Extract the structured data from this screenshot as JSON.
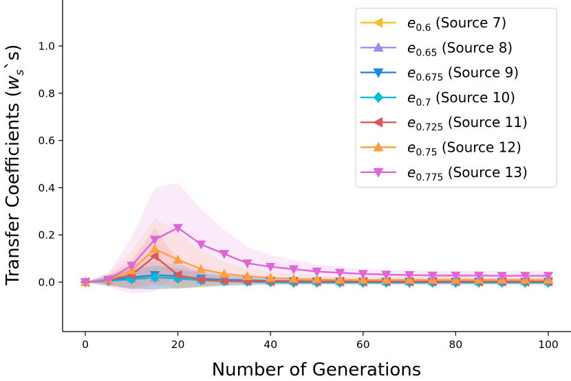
{
  "chart_data": {
    "type": "line",
    "xlabel": "Number of Generations",
    "ylabel_main": "Transfer Coefficients (",
    "ylabel_var": "w",
    "ylabel_sub": "s",
    "ylabel_tail": "`s)",
    "xlim": [
      -5,
      103
    ],
    "ylim": [
      -0.21,
      1.2
    ],
    "xticks": [
      0,
      20,
      40,
      60,
      80,
      100
    ],
    "yticks": [
      0.0,
      0.2,
      0.4,
      0.6,
      0.8,
      1.0
    ],
    "x": [
      0,
      5,
      10,
      15,
      20,
      25,
      30,
      35,
      40,
      45,
      50,
      55,
      60,
      65,
      70,
      75,
      80,
      85,
      90,
      95,
      100
    ],
    "legend_position": "top-right",
    "series": [
      {
        "key": "s7",
        "sym": "e",
        "sub": "0.6",
        "label": " (Source 7)",
        "color": "#fbc02d",
        "marker": "triangle-left",
        "values": [
          0,
          0.005,
          0.012,
          0.018,
          0.015,
          0.01,
          0.008,
          0.006,
          0.005,
          0.004,
          0.004,
          0.003,
          0.003,
          0.003,
          0.003,
          0.003,
          0.003,
          0.003,
          0.003,
          0.003,
          0.003
        ],
        "band": [
          0,
          0.02,
          0.04,
          0.05,
          0.045,
          0.03,
          0.025,
          0.02,
          0.015,
          0.012,
          0.01,
          0.01,
          0.01,
          0.01,
          0.01,
          0.01,
          0.01,
          0.01,
          0.01,
          0.01,
          0.01
        ]
      },
      {
        "key": "s8",
        "sym": "e",
        "sub": "0.65",
        "label": " (Source 8)",
        "color": "#9e8cf0",
        "marker": "triangle-up",
        "values": [
          0,
          0.01,
          0.015,
          0.02,
          0.018,
          0.012,
          0.009,
          0.007,
          0.005,
          0.004,
          0.004,
          0.003,
          0.003,
          0.003,
          0.003,
          0.003,
          0.003,
          0.003,
          0.003,
          0.003,
          0.003
        ],
        "band": [
          0,
          0.02,
          0.04,
          0.05,
          0.045,
          0.03,
          0.025,
          0.02,
          0.015,
          0.012,
          0.01,
          0.01,
          0.01,
          0.01,
          0.01,
          0.01,
          0.01,
          0.01,
          0.01,
          0.01,
          0.01
        ]
      },
      {
        "key": "s9",
        "sym": "e",
        "sub": "0.675",
        "label": " (Source 9)",
        "color": "#1e88e5",
        "marker": "triangle-down",
        "values": [
          0,
          0.008,
          0.02,
          0.03,
          0.025,
          0.015,
          0.01,
          0.008,
          0.005,
          0.004,
          0.003,
          0.003,
          0.002,
          0.002,
          0.002,
          0.002,
          0.002,
          0.002,
          0.002,
          0.002,
          0.002
        ],
        "band": [
          0,
          0.02,
          0.05,
          0.06,
          0.05,
          0.035,
          0.025,
          0.02,
          0.015,
          0.012,
          0.01,
          0.01,
          0.01,
          0.01,
          0.01,
          0.01,
          0.01,
          0.01,
          0.01,
          0.01,
          0.01
        ]
      },
      {
        "key": "s10",
        "sym": "e",
        "sub": "0.7",
        "label": " (Source 10)",
        "color": "#00bcd4",
        "marker": "diamond",
        "values": [
          0,
          0.005,
          0.012,
          0.02,
          0.015,
          0.008,
          0.004,
          0.002,
          0,
          -0.002,
          -0.002,
          -0.002,
          -0.002,
          -0.002,
          -0.002,
          -0.002,
          -0.002,
          -0.002,
          -0.002,
          -0.002,
          -0.002
        ],
        "band": [
          0,
          0.02,
          0.04,
          0.05,
          0.04,
          0.03,
          0.02,
          0.015,
          0.01,
          0.01,
          0.01,
          0.01,
          0.01,
          0.01,
          0.01,
          0.01,
          0.01,
          0.01,
          0.01,
          0.01,
          0.01
        ]
      },
      {
        "key": "s11",
        "sym": "e",
        "sub": "0.725",
        "label": " (Source 11)",
        "color": "#e05555",
        "marker": "triangle-left",
        "values": [
          0,
          0.01,
          0.03,
          0.11,
          0.03,
          0.01,
          0.006,
          0.004,
          0.003,
          0.003,
          0.002,
          0.002,
          0.002,
          0.002,
          0.002,
          0.002,
          0.002,
          0.002,
          0.002,
          0.002,
          0.002
        ],
        "band": [
          0,
          0.02,
          0.06,
          0.12,
          0.06,
          0.025,
          0.015,
          0.01,
          0.01,
          0.01,
          0.01,
          0.01,
          0.01,
          0.01,
          0.01,
          0.01,
          0.01,
          0.01,
          0.01,
          0.01,
          0.01
        ]
      },
      {
        "key": "s12",
        "sym": "e",
        "sub": "0.75",
        "label": " (Source 12)",
        "color": "#ffa040",
        "marker": "triangle-up",
        "values": [
          0,
          0.01,
          0.05,
          0.14,
          0.095,
          0.055,
          0.035,
          0.025,
          0.018,
          0.014,
          0.012,
          0.01,
          0.01,
          0.01,
          0.01,
          0.01,
          0.01,
          0.01,
          0.01,
          0.01,
          0.01
        ],
        "band": [
          0,
          0.03,
          0.08,
          0.13,
          0.12,
          0.08,
          0.05,
          0.035,
          0.025,
          0.02,
          0.015,
          0.012,
          0.012,
          0.012,
          0.012,
          0.012,
          0.012,
          0.012,
          0.012,
          0.012,
          0.012
        ]
      },
      {
        "key": "s13",
        "sym": "e",
        "sub": "0.775",
        "label": " (Source 13)",
        "color": "#e066d8",
        "marker": "triangle-down",
        "values": [
          0,
          0.01,
          0.07,
          0.18,
          0.23,
          0.16,
          0.12,
          0.08,
          0.065,
          0.055,
          0.045,
          0.04,
          0.035,
          0.032,
          0.03,
          0.028,
          0.028,
          0.028,
          0.027,
          0.027,
          0.027
        ],
        "band": [
          0,
          0.03,
          0.12,
          0.22,
          0.19,
          0.15,
          0.1,
          0.07,
          0.05,
          0.04,
          0.03,
          0.025,
          0.02,
          0.02,
          0.02,
          0.02,
          0.02,
          0.02,
          0.02,
          0.02,
          0.02
        ]
      }
    ]
  }
}
